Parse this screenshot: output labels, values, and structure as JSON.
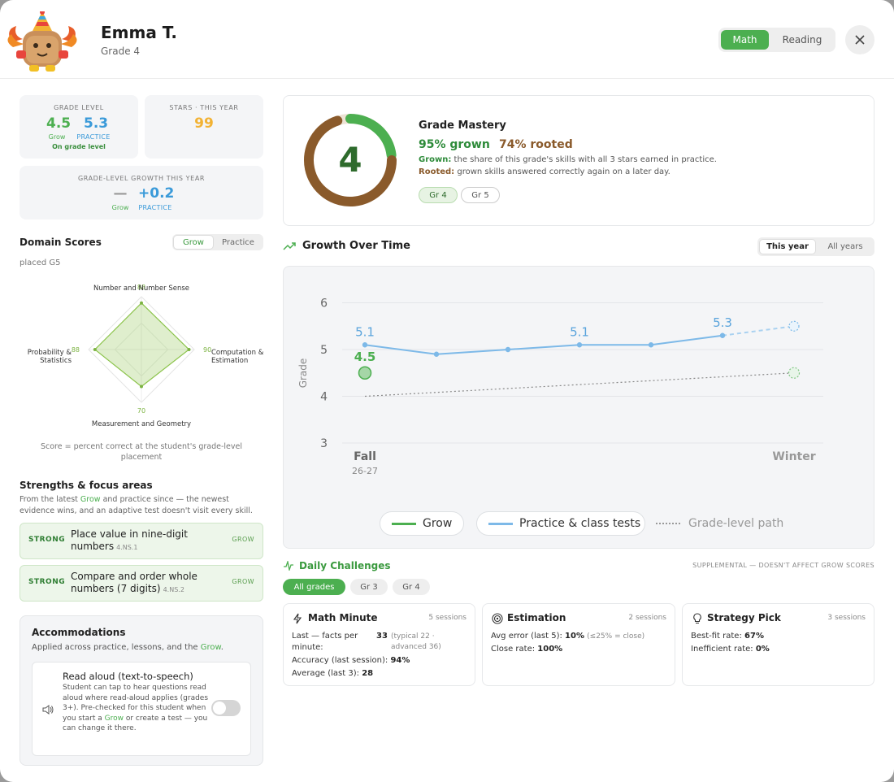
{
  "student": {
    "name": "Emma T.",
    "grade": "Grade 4"
  },
  "subject_toggle": {
    "math": "Math",
    "reading": "Reading"
  },
  "grade_level_card": {
    "label": "GRADE LEVEL",
    "grow_value": "4.5",
    "grow_label": "Grow",
    "practice_value": "5.3",
    "practice_label": "PRACTICE",
    "status": "On grade level"
  },
  "stars_card": {
    "label": "STARS · THIS YEAR",
    "value": "99"
  },
  "growth_card": {
    "label": "GRADE-LEVEL GROWTH THIS YEAR",
    "grow_value": "—",
    "grow_label": "Grow",
    "practice_value": "+0.2",
    "practice_label": "PRACTICE"
  },
  "domain_scores": {
    "title": "Domain Scores",
    "toggle": {
      "grow": "Grow",
      "practice": "Practice"
    },
    "placed": "placed G5",
    "axes": [
      {
        "label1": "Number and Number Sense",
        "label2": "",
        "value": 88
      },
      {
        "label1": "Computation &",
        "label2": "Estimation",
        "value": 90
      },
      {
        "label1": "Measurement and Geometry",
        "label2": "",
        "value": 70
      },
      {
        "label1": "Probability &",
        "label2": "Statistics",
        "value": 88
      }
    ],
    "note": "Score = percent correct at the student's grade-level placement"
  },
  "strengths": {
    "title": "Strengths & focus areas",
    "desc_pre": "From the latest ",
    "desc_link": "Grow",
    "desc_post": " and practice since — the newest evidence wins, and an adaptive test doesn't visit every skill.",
    "items": [
      {
        "strength": "STRONG",
        "text": "Place value in nine-digit numbers",
        "code": "4.NS.1",
        "source": "GROW"
      },
      {
        "strength": "STRONG",
        "text": "Compare and order whole numbers (7 digits)",
        "code": "4.NS.2",
        "source": "GROW"
      }
    ]
  },
  "accommodations": {
    "title": "Accommodations",
    "desc_pre": "Applied across practice, lessons, and the ",
    "desc_link": "Grow",
    "desc_post": ".",
    "read_aloud": {
      "title": "Read aloud (text-to-speech)",
      "desc_pre": "Student can tap to hear questions read aloud where read-aloud applies (grades 3+). Pre-checked for this student when you start a ",
      "desc_link": "Grow",
      "desc_post": " or create a test — you can change it there.",
      "enabled": false
    }
  },
  "mastery": {
    "value": "4",
    "title": "Grade Mastery",
    "grown": "95% grown",
    "rooted": "74% rooted",
    "grown_fraction": 0.95,
    "rooted_fraction": 0.74,
    "grown_term": "Grown:",
    "grown_def": " the share of this grade's skills with all 3 stars earned in practice.",
    "rooted_term": "Rooted:",
    "rooted_def": " grown skills answered correctly again on a later day.",
    "chips": [
      "Gr 4",
      "Gr 5"
    ]
  },
  "growth": {
    "title": "Growth Over Time",
    "toggle": {
      "this_year": "This year",
      "all_years": "All years"
    },
    "legend": {
      "grow": "Grow",
      "practice": "Practice & class tests",
      "path": "Grade-level path"
    },
    "colors": {
      "grow": "#4caf50",
      "practice": "#7db9e8",
      "path": "#888888"
    }
  },
  "chart_data": {
    "type": "line",
    "ylabel": "Grade",
    "ylim": [
      3,
      6
    ],
    "yticks": [
      "3",
      "4",
      "5",
      "6"
    ],
    "x_labels": [
      {
        "label": "Fall",
        "sub": "26-27"
      },
      {
        "label": "Winter",
        "sub": ""
      }
    ],
    "series": [
      {
        "name": "Practice & class tests",
        "points": [
          {
            "t": 0,
            "y": 5.1,
            "label": "5.1"
          },
          {
            "t": 0.2,
            "y": 4.9
          },
          {
            "t": 0.4,
            "y": 5.0
          },
          {
            "t": 0.6,
            "y": 5.1,
            "label": "5.1"
          },
          {
            "t": 0.8,
            "y": 5.1
          },
          {
            "t": 1.0,
            "y": 5.3,
            "label": "5.3"
          }
        ],
        "projection": {
          "t": 1.2,
          "y": 5.5
        }
      },
      {
        "name": "Grow",
        "points": [
          {
            "t": 0,
            "y": 4.5,
            "label": "4.5"
          }
        ],
        "projection": {
          "t": 1.2,
          "y": 4.5
        }
      },
      {
        "name": "Grade-level path",
        "points": [
          {
            "t": 0,
            "y": 4.0
          },
          {
            "t": 1.2,
            "y": 4.5
          }
        ]
      }
    ]
  },
  "daily": {
    "title": "Daily Challenges",
    "note": "SUPPLEMENTAL — DOESN'T AFFECT GROW SCORES",
    "filters": [
      "All grades",
      "Gr 3",
      "Gr 4"
    ],
    "cards": [
      {
        "title": "Math Minute",
        "sessions": "5 sessions",
        "rows": [
          {
            "label": "Last — facts per",
            "label2": "minute:",
            "value": "33",
            "extra": "(typical 22 ·",
            "extra2": "advanced 36)"
          },
          {
            "label": "Accuracy (last session):",
            "value": "94%"
          },
          {
            "label": "Average (last 3):",
            "value": "28"
          }
        ]
      },
      {
        "title": "Estimation",
        "sessions": "2 sessions",
        "rows": [
          {
            "label": "Avg error (last 5):",
            "value": "10%",
            "extra": "(≤25% = close)"
          },
          {
            "label": "Close rate:",
            "value": "100%"
          }
        ]
      },
      {
        "title": "Strategy Pick",
        "sessions": "3 sessions",
        "rows": [
          {
            "label": "Best-fit rate:",
            "value": "67%"
          },
          {
            "label": "Inefficient rate:",
            "value": "0%"
          }
        ]
      }
    ]
  }
}
